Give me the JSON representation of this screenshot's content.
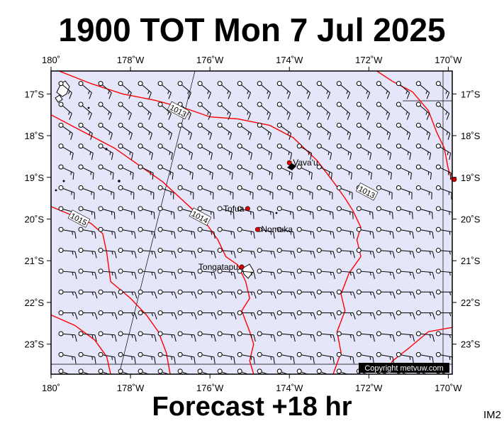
{
  "title": "1900 TOT Mon 7 Jul 2025",
  "forecast_label": "Forecast +18 hr",
  "image_tag": "IM2",
  "copyright": "Copyright metvuw.com",
  "colors": {
    "ocean": "#e6e6fa",
    "isobar": "#ff0000",
    "place_dot": "#e00000",
    "frame": "#000000",
    "copyright_bg": "#000000"
  },
  "map": {
    "lon_range": [
      180,
      169.9
    ],
    "lat_range": [
      -16.45,
      -23.72
    ],
    "lon_ticks": [
      {
        "value": 180,
        "label": "180˚"
      },
      {
        "value": 178,
        "label": "178˚W"
      },
      {
        "value": 176,
        "label": "176˚W"
      },
      {
        "value": 174,
        "label": "174˚W"
      },
      {
        "value": 172,
        "label": "172˚W"
      },
      {
        "value": 170,
        "label": "170˚W"
      }
    ],
    "lat_ticks": [
      {
        "value": -17,
        "label": "17˚S"
      },
      {
        "value": -18,
        "label": "18˚S"
      },
      {
        "value": -19,
        "label": "19˚S"
      },
      {
        "value": -20,
        "label": "20˚S"
      },
      {
        "value": -21,
        "label": "21˚S"
      },
      {
        "value": -22,
        "label": "22˚S"
      },
      {
        "value": -23,
        "label": "23˚S"
      }
    ],
    "places": [
      {
        "name": "Vava'u",
        "lon": 174.0,
        "lat": -18.65
      },
      {
        "name": "Tofua",
        "lon": 175.05,
        "lat": -19.75
      },
      {
        "name": "Nomuka",
        "lon": 174.8,
        "lat": -20.25
      },
      {
        "name": "Tongatapu",
        "lon": 175.2,
        "lat": -21.15
      },
      {
        "name": "",
        "lon": 169.85,
        "lat": -19.05
      }
    ],
    "isobars": [
      {
        "label": "1013",
        "label_at": [
          176.8,
          -17.4
        ],
        "points": [
          [
            179.8,
            -16.45
          ],
          [
            179.0,
            -16.75
          ],
          [
            178.2,
            -17.0
          ],
          [
            177.4,
            -17.15
          ],
          [
            176.6,
            -17.35
          ],
          [
            176.0,
            -17.55
          ],
          [
            175.3,
            -17.6
          ],
          [
            174.5,
            -17.75
          ],
          [
            173.9,
            -18.05
          ],
          [
            173.3,
            -18.6
          ],
          [
            172.9,
            -19.1
          ],
          [
            172.6,
            -19.5
          ],
          [
            172.4,
            -19.8
          ],
          [
            172.2,
            -20.2
          ],
          [
            172.3,
            -20.5
          ],
          [
            172.2,
            -20.9
          ],
          [
            172.5,
            -21.3
          ],
          [
            172.7,
            -21.8
          ],
          [
            172.6,
            -22.2
          ],
          [
            172.8,
            -22.7
          ],
          [
            172.7,
            -23.2
          ],
          [
            172.9,
            -23.72
          ]
        ]
      },
      {
        "label": "1013",
        "label_at": [
          172.05,
          -19.35
        ],
        "points": [
          [
            171.8,
            -16.45
          ],
          [
            171.4,
            -16.7
          ],
          [
            170.9,
            -16.95
          ],
          [
            170.5,
            -17.4
          ],
          [
            170.3,
            -17.9
          ],
          [
            170.1,
            -18.3
          ],
          [
            170.0,
            -18.8
          ],
          [
            169.9,
            -19.1
          ]
        ]
      },
      {
        "label": "1014",
        "label_at": [
          176.25,
          -19.95
        ],
        "points": [
          [
            180.0,
            -17.5
          ],
          [
            179.2,
            -17.9
          ],
          [
            178.4,
            -18.3
          ],
          [
            177.8,
            -18.7
          ],
          [
            177.2,
            -19.1
          ],
          [
            176.8,
            -19.45
          ],
          [
            176.4,
            -19.8
          ],
          [
            176.1,
            -20.1
          ],
          [
            175.8,
            -20.5
          ],
          [
            175.6,
            -20.9
          ],
          [
            175.3,
            -21.1
          ],
          [
            175.1,
            -21.5
          ],
          [
            175.0,
            -21.9
          ],
          [
            175.2,
            -22.2
          ],
          [
            175.0,
            -22.7
          ],
          [
            174.9,
            -23.0
          ],
          [
            175.0,
            -23.4
          ],
          [
            174.9,
            -23.72
          ]
        ]
      },
      {
        "label": "1015",
        "label_at": [
          179.3,
          -20.0
        ],
        "points": [
          [
            180.0,
            -19.7
          ],
          [
            179.5,
            -19.9
          ],
          [
            179.0,
            -20.1
          ],
          [
            178.7,
            -20.35
          ],
          [
            178.6,
            -20.8
          ],
          [
            178.5,
            -21.5
          ],
          [
            178.0,
            -21.9
          ],
          [
            177.6,
            -22.3
          ],
          [
            177.3,
            -22.7
          ],
          [
            177.1,
            -23.2
          ],
          [
            177.0,
            -23.72
          ]
        ]
      },
      {
        "label": "",
        "label_at": null,
        "points": [
          [
            180.0,
            -22.3
          ],
          [
            179.4,
            -22.55
          ],
          [
            178.9,
            -22.9
          ],
          [
            178.6,
            -23.3
          ],
          [
            178.5,
            -23.72
          ]
        ]
      },
      {
        "label": "",
        "label_at": null,
        "points": [
          [
            169.9,
            -22.6
          ],
          [
            170.5,
            -22.7
          ],
          [
            171.0,
            -23.1
          ],
          [
            171.4,
            -23.4
          ],
          [
            171.6,
            -23.72
          ]
        ]
      }
    ],
    "wind": {
      "lon_start": 179.75,
      "lon_step": 0.5,
      "lat_start": -16.75,
      "lat_step": 0.5,
      "rows": [
        {
          "lat": -16.75,
          "speed_kt": 15,
          "from_deg": 130
        },
        {
          "lat": -17.25,
          "speed_kt": 15,
          "from_deg": 130
        },
        {
          "lat": -17.75,
          "speed_kt": 15,
          "from_deg": 125
        },
        {
          "lat": -18.25,
          "speed_kt": 15,
          "from_deg": 120
        },
        {
          "lat": -18.75,
          "speed_kt": 15,
          "from_deg": 115
        },
        {
          "lat": -19.25,
          "speed_kt": 15,
          "from_deg": 110
        },
        {
          "lat": -19.75,
          "speed_kt": 15,
          "from_deg": 105
        },
        {
          "lat": -20.25,
          "speed_kt": 15,
          "from_deg": 100
        },
        {
          "lat": -20.75,
          "speed_kt": 15,
          "from_deg": 95
        },
        {
          "lat": -21.25,
          "speed_kt": 15,
          "from_deg": 95
        },
        {
          "lat": -21.75,
          "speed_kt": 15,
          "from_deg": 90
        },
        {
          "lat": -22.25,
          "speed_kt": 15,
          "from_deg": 90
        },
        {
          "lat": -22.75,
          "speed_kt": 15,
          "from_deg": 95
        },
        {
          "lat": -23.25,
          "speed_kt": 15,
          "from_deg": 100
        },
        {
          "lat": -23.65,
          "speed_kt": 10,
          "from_deg": 110
        }
      ]
    }
  }
}
